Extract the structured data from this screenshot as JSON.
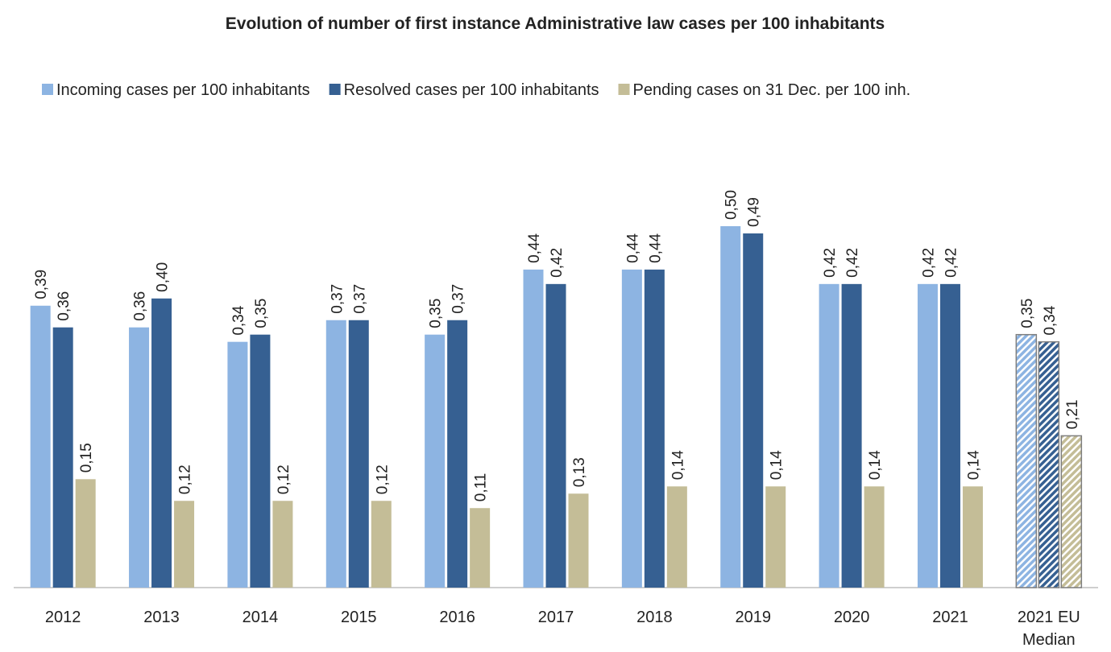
{
  "chart_data": {
    "type": "bar",
    "title": "Evolution of number of first instance Administrative law cases per 100 inhabitants",
    "categories": [
      "2012",
      "2013",
      "2014",
      "2015",
      "2016",
      "2017",
      "2018",
      "2019",
      "2020",
      "2021",
      "2021 EU Median"
    ],
    "series": [
      {
        "name": "Incoming cases per 100 inhabitants",
        "color": "#8db4e2",
        "values": [
          0.39,
          0.36,
          0.34,
          0.37,
          0.35,
          0.44,
          0.44,
          0.5,
          0.42,
          0.42,
          0.35
        ],
        "value_labels": [
          "0,39",
          "0,36",
          "0,34",
          "0,37",
          "0,35",
          "0,44",
          "0,44",
          "0,50",
          "0,42",
          "0,42",
          "0,35"
        ]
      },
      {
        "name": "Resolved cases per 100 inhabitants",
        "color": "#366092",
        "values": [
          0.36,
          0.4,
          0.35,
          0.37,
          0.37,
          0.42,
          0.44,
          0.49,
          0.42,
          0.42,
          0.34
        ],
        "value_labels": [
          "0,36",
          "0,40",
          "0,35",
          "0,37",
          "0,37",
          "0,42",
          "0,44",
          "0,49",
          "0,42",
          "0,42",
          "0,34"
        ]
      },
      {
        "name": "Pending cases on 31 Dec. per 100 inh.",
        "color": "#c4bd97",
        "values": [
          0.15,
          0.12,
          0.12,
          0.12,
          0.11,
          0.13,
          0.14,
          0.14,
          0.14,
          0.14,
          0.21
        ],
        "value_labels": [
          "0,15",
          "0,12",
          "0,12",
          "0,12",
          "0,11",
          "0,13",
          "0,14",
          "0,14",
          "0,14",
          "0,14",
          "0,21"
        ]
      }
    ],
    "ylim": [
      0,
      0.5
    ],
    "legend": "top"
  }
}
